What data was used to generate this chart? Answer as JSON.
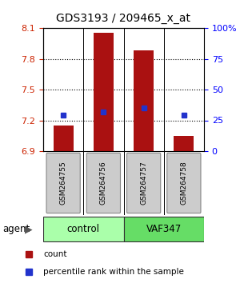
{
  "title": "GDS3193 / 209465_x_at",
  "samples": [
    "GSM264755",
    "GSM264756",
    "GSM264757",
    "GSM264758"
  ],
  "bar_values": [
    7.15,
    8.05,
    7.88,
    7.05
  ],
  "bar_base": 6.9,
  "percentile_values": [
    7.25,
    7.28,
    7.32,
    7.25
  ],
  "ylim": [
    6.9,
    8.1
  ],
  "yticks_left": [
    6.9,
    7.2,
    7.5,
    7.8,
    8.1
  ],
  "yticks_right": [
    0,
    25,
    50,
    75,
    100
  ],
  "ytick_right_labels": [
    "0",
    "25",
    "50",
    "75",
    "100%"
  ],
  "bar_color": "#aa1111",
  "percentile_color": "#2233cc",
  "groups": [
    {
      "label": "control",
      "indices": [
        0,
        1
      ],
      "color": "#aaffaa"
    },
    {
      "label": "VAF347",
      "indices": [
        2,
        3
      ],
      "color": "#66dd66"
    }
  ],
  "group_label": "agent",
  "legend_bar_label": "count",
  "legend_pct_label": "percentile rank within the sample",
  "grid_yticks": [
    7.2,
    7.5,
    7.8
  ],
  "bar_width": 0.5
}
